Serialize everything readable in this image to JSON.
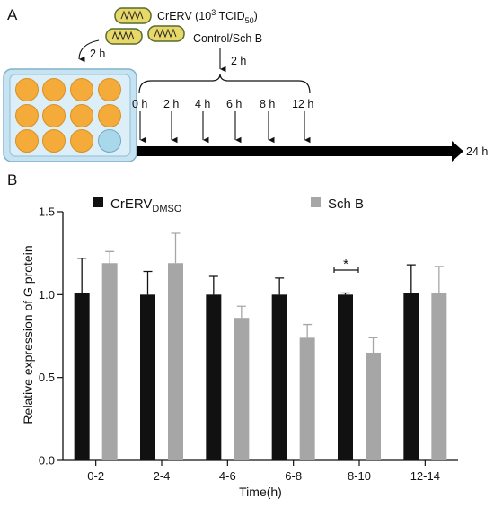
{
  "panel_a": {
    "letter": "A",
    "virus_label": "CrERV (10",
    "virus_sup": "3",
    "virus_mid": " TCID",
    "virus_sub": "50",
    "virus_end": ")",
    "treatment_label": "Control/Sch B",
    "infection_time": "2 h",
    "treatment_time": "2 h",
    "timepoints": [
      "0 h",
      "2 h",
      "4 h",
      "6 h",
      "8 h",
      "12 h"
    ],
    "end_time": "24 h",
    "colors": {
      "well": "#f4ab3a",
      "empty_well": "#a9d8ea",
      "plate": "#c7e3f2",
      "virus": "#e8d86a"
    }
  },
  "panel_b": {
    "letter": "B",
    "legend": [
      {
        "main": "CrERV",
        "sub": "DMSO",
        "color": "#111111"
      },
      {
        "main": "Sch B",
        "sub": "",
        "color": "#a6a6a6"
      }
    ],
    "significance": "*"
  },
  "chart_data": {
    "type": "bar",
    "categories": [
      "0-2",
      "2-4",
      "4-6",
      "6-8",
      "8-10",
      "12-14"
    ],
    "series": [
      {
        "name": "CrERV_DMSO",
        "color": "#111111",
        "values": [
          1.01,
          1.0,
          1.0,
          1.0,
          1.0,
          1.01
        ],
        "errors": [
          0.21,
          0.14,
          0.11,
          0.1,
          0.01,
          0.17
        ]
      },
      {
        "name": "Sch B",
        "color": "#a6a6a6",
        "values": [
          1.19,
          1.19,
          0.86,
          0.74,
          0.65,
          1.01
        ],
        "errors": [
          0.07,
          0.18,
          0.07,
          0.08,
          0.09,
          0.16
        ]
      }
    ],
    "xlabel": "Time(h)",
    "ylabel": "Relative expression of G protein",
    "ylim": [
      0,
      1.5
    ],
    "yticks": [
      "0.0",
      "0.5",
      "1.0",
      "1.5"
    ],
    "annotation": {
      "text": "*",
      "category": "8-10"
    }
  }
}
